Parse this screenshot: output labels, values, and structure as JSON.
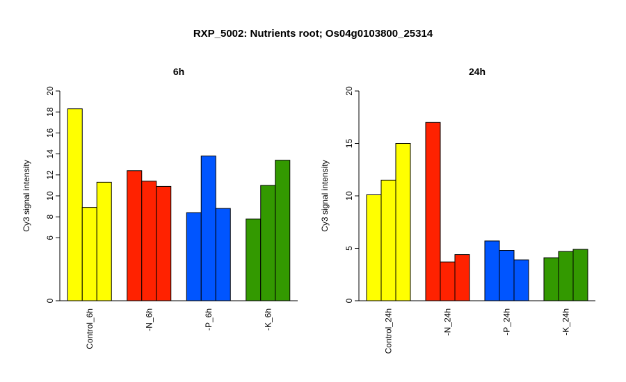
{
  "title": "RXP_5002: Nutrients root; Os04g0103800_25314",
  "colors": {
    "control": "#ffff00",
    "n": "#ff2200",
    "p": "#0055ff",
    "k": "#339900"
  },
  "chart_data": [
    {
      "type": "bar",
      "title": "6h",
      "ylabel": "Cy3 signal intensity",
      "ylim": [
        0,
        20
      ],
      "yticks": [
        0,
        6,
        8,
        10,
        12,
        14,
        16,
        18,
        20
      ],
      "categories": [
        "Control_6h",
        "-N_6h",
        "-P_6h",
        "-K_6h"
      ],
      "category_colors": [
        "#ffff00",
        "#ff2200",
        "#0055ff",
        "#339900"
      ],
      "values": [
        [
          18.3,
          8.9,
          11.3
        ],
        [
          12.4,
          11.4,
          10.9
        ],
        [
          8.4,
          13.8,
          8.8
        ],
        [
          7.8,
          11.0,
          13.4
        ]
      ]
    },
    {
      "type": "bar",
      "title": "24h",
      "ylabel": "Cy3 signal intensity",
      "ylim": [
        0,
        20
      ],
      "yticks": [
        0,
        5,
        10,
        15,
        20
      ],
      "categories": [
        "Control_24h",
        "-N_24h",
        "-P_24h",
        "-K_24h"
      ],
      "category_colors": [
        "#ffff00",
        "#ff2200",
        "#0055ff",
        "#339900"
      ],
      "values": [
        [
          10.1,
          11.5,
          15.0
        ],
        [
          17.0,
          3.7,
          4.4
        ],
        [
          5.7,
          4.8,
          3.9
        ],
        [
          4.1,
          4.7,
          4.9
        ]
      ]
    }
  ]
}
